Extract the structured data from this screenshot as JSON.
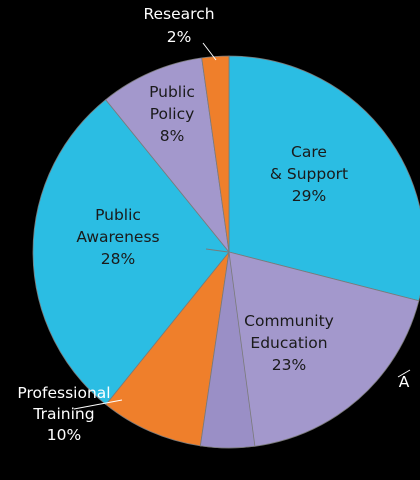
{
  "chart_data": {
    "type": "pie",
    "slices": [
      {
        "label_lines": [
          "Care",
          "& Support"
        ],
        "value": 29,
        "value_label": "29%",
        "color": "#2bbde3"
      },
      {
        "label_lines": [
          "Advocacy"
        ],
        "value": 0,
        "value_label": "",
        "color": "#a398cc",
        "truncated_text": "A"
      },
      {
        "label_lines": [
          "Community",
          "Education"
        ],
        "value": 23,
        "value_label": "23%",
        "color": "#a398cc"
      },
      {
        "label_lines": [
          "Professional",
          "Training"
        ],
        "value": 10,
        "value_label": "10%",
        "color": "#ef7f2b"
      },
      {
        "label_lines": [
          "Public",
          "Awareness"
        ],
        "value": 28,
        "value_label": "28%",
        "color": "#2bbde3"
      },
      {
        "label_lines": [
          "Public",
          "Policy"
        ],
        "value": 8,
        "value_label": "8%",
        "color": "#a398cc"
      },
      {
        "label_lines": [
          "Research"
        ],
        "value": 2,
        "value_label": "2%",
        "color": "#ef7f2b"
      }
    ]
  }
}
